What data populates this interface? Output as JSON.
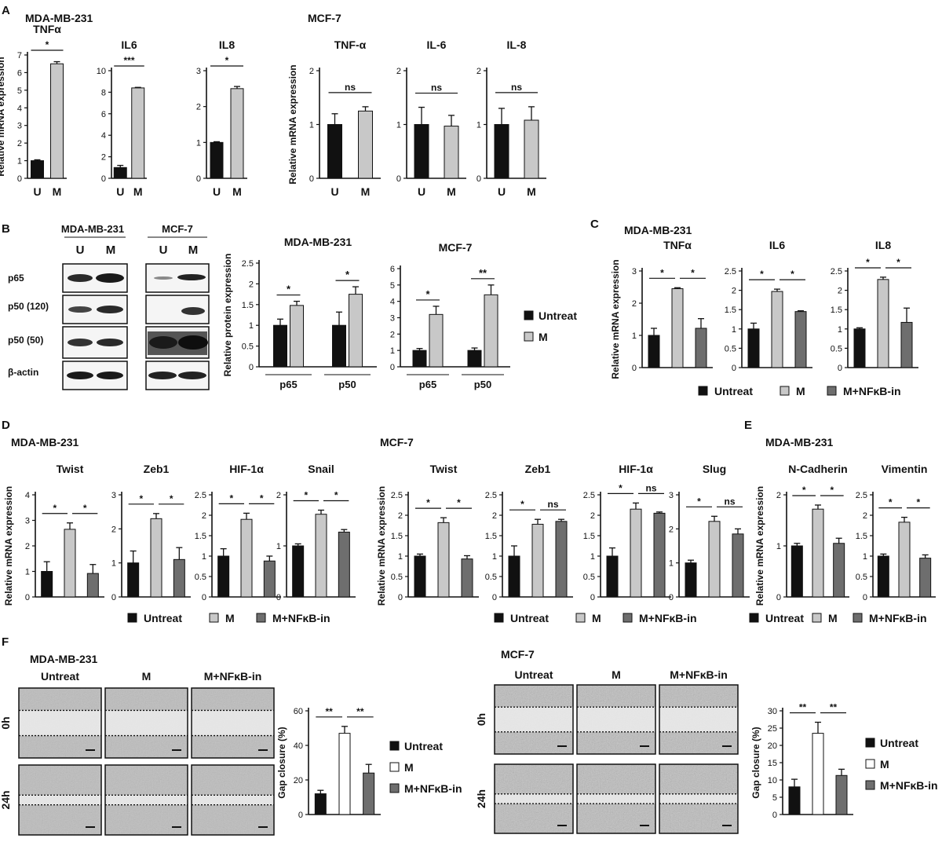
{
  "panels": {
    "A": {
      "letter": "A",
      "groups": [
        {
          "cell": "MDA-MB-231"
        },
        {
          "cell": "MCF-7"
        }
      ]
    },
    "B": {
      "letter": "B"
    },
    "C": {
      "letter": "C",
      "cell": "MDA-MB-231"
    },
    "D": {
      "letter": "D",
      "groups": [
        {
          "cell": "MDA-MB-231"
        },
        {
          "cell": "MCF-7"
        }
      ]
    },
    "E": {
      "letter": "E",
      "cell": "MDA-MB-231"
    },
    "F": {
      "letter": "F",
      "groups": [
        {
          "cell": "MDA-MB-231"
        },
        {
          "cell": "MCF-7"
        }
      ]
    }
  },
  "legends": {
    "two": [
      "Untreat",
      "M"
    ],
    "three": [
      "Untreat",
      "M",
      "M+NFκB-in"
    ]
  },
  "colors": {
    "untreat": "#111111",
    "m": "#c8c8c8",
    "inhibitor": "#6e6e6e",
    "m_open": "#ffffff"
  },
  "western": {
    "groups": [
      {
        "cell": "MDA-MB-231",
        "lanes": [
          "U",
          "M"
        ]
      },
      {
        "cell": "MCF-7",
        "lanes": [
          "U",
          "M"
        ]
      }
    ],
    "rows": [
      "p65",
      "p50 (120)",
      "p50 (50)",
      "β-actin"
    ]
  },
  "scratch": {
    "columns": [
      "Untreat",
      "M",
      "M+NFκB-in"
    ],
    "rows": [
      "0h",
      "24h"
    ]
  },
  "chart_data": [
    {
      "id": "A1",
      "type": "bar",
      "title": "TNFα",
      "ylabel": "Relative mRNA expression",
      "categories": [
        "U",
        "M"
      ],
      "values": [
        1.0,
        6.5
      ],
      "errors": [
        0.05,
        0.12
      ],
      "ylim": [
        0,
        7
      ],
      "yticks": [
        0,
        1,
        2,
        3,
        4,
        5,
        6,
        7
      ],
      "significance": [
        {
          "from": 0,
          "to": 1,
          "label": "*"
        }
      ]
    },
    {
      "id": "A2",
      "type": "bar",
      "title": "IL6",
      "ylabel": "",
      "categories": [
        "U",
        "M"
      ],
      "values": [
        1.0,
        8.4
      ],
      "errors": [
        0.2,
        0.05
      ],
      "ylim": [
        0,
        10
      ],
      "yticks": [
        0,
        2,
        4,
        6,
        8,
        10
      ],
      "significance": [
        {
          "from": 0,
          "to": 1,
          "label": "***"
        }
      ]
    },
    {
      "id": "A3",
      "type": "bar",
      "title": "IL8",
      "ylabel": "",
      "categories": [
        "U",
        "M"
      ],
      "values": [
        1.0,
        2.5
      ],
      "errors": [
        0.02,
        0.06
      ],
      "ylim": [
        0,
        3
      ],
      "yticks": [
        0,
        1,
        2,
        3
      ],
      "significance": [
        {
          "from": 0,
          "to": 1,
          "label": "*"
        }
      ]
    },
    {
      "id": "A4",
      "type": "bar",
      "title": "TNF-α",
      "ylabel": "Relative mRNA expression",
      "categories": [
        "U",
        "M"
      ],
      "values": [
        1.0,
        1.25
      ],
      "errors": [
        0.2,
        0.08
      ],
      "ylim": [
        0,
        2
      ],
      "yticks": [
        0,
        1,
        2
      ],
      "significance": [
        {
          "from": 0,
          "to": 1,
          "label": "ns"
        }
      ]
    },
    {
      "id": "A5",
      "type": "bar",
      "title": "IL-6",
      "ylabel": "",
      "categories": [
        "U",
        "M"
      ],
      "values": [
        1.0,
        0.97
      ],
      "errors": [
        0.32,
        0.2
      ],
      "ylim": [
        0,
        2
      ],
      "yticks": [
        0,
        1,
        2
      ],
      "significance": [
        {
          "from": 0,
          "to": 1,
          "label": "ns"
        }
      ]
    },
    {
      "id": "A6",
      "type": "bar",
      "title": "IL-8",
      "ylabel": "",
      "categories": [
        "U",
        "M"
      ],
      "values": [
        1.0,
        1.08
      ],
      "errors": [
        0.3,
        0.25
      ],
      "ylim": [
        0,
        2
      ],
      "yticks": [
        0,
        1,
        2
      ],
      "significance": [
        {
          "from": 0,
          "to": 1,
          "label": "ns"
        }
      ]
    },
    {
      "id": "B1",
      "type": "bar",
      "title": "MDA-MB-231",
      "ylabel": "Relative protein expression",
      "categories": [
        "p65",
        "p50"
      ],
      "series": [
        {
          "name": "Untreat",
          "values": [
            1.0,
            1.0
          ],
          "errors": [
            0.15,
            0.32
          ]
        },
        {
          "name": "M",
          "values": [
            1.48,
            1.75
          ],
          "errors": [
            0.1,
            0.18
          ]
        }
      ],
      "ylim": [
        0,
        2.5
      ],
      "yticks": [
        0,
        0.5,
        1,
        1.5,
        2,
        2.5
      ],
      "significance": [
        {
          "category": 0,
          "label": "*"
        },
        {
          "category": 1,
          "label": "*"
        }
      ]
    },
    {
      "id": "B2",
      "type": "bar",
      "title": "MCF-7",
      "ylabel": "",
      "categories": [
        "p65",
        "p50"
      ],
      "series": [
        {
          "name": "Untreat",
          "values": [
            1.0,
            1.0
          ],
          "errors": [
            0.12,
            0.15
          ]
        },
        {
          "name": "M",
          "values": [
            3.2,
            4.4
          ],
          "errors": [
            0.5,
            0.6
          ]
        }
      ],
      "ylim": [
        0,
        6
      ],
      "yticks": [
        0,
        1,
        2,
        3,
        4,
        5,
        6
      ],
      "significance": [
        {
          "category": 0,
          "label": "*"
        },
        {
          "category": 1,
          "label": "**"
        }
      ]
    },
    {
      "id": "C1",
      "type": "bar",
      "title": "TNFα",
      "ylabel": "Relative mRNA expression",
      "categories": [
        "Untreat",
        "M",
        "M+NFκB-in"
      ],
      "values": [
        1.0,
        2.45,
        1.22
      ],
      "errors": [
        0.22,
        0.03,
        0.3
      ],
      "ylim": [
        0,
        3
      ],
      "yticks": [
        0,
        1,
        2,
        3
      ],
      "significance": [
        {
          "from": 0,
          "to": 1,
          "label": "*"
        },
        {
          "from": 1,
          "to": 2,
          "label": "*"
        }
      ]
    },
    {
      "id": "C2",
      "type": "bar",
      "title": "IL6",
      "ylabel": "",
      "categories": [
        "Untreat",
        "M",
        "M+NFκB-in"
      ],
      "values": [
        1.0,
        1.97,
        1.45
      ],
      "errors": [
        0.15,
        0.06,
        0.02
      ],
      "ylim": [
        0,
        2.5
      ],
      "yticks": [
        0,
        0.5,
        1,
        1.5,
        2,
        2.5
      ],
      "significance": [
        {
          "from": 0,
          "to": 1,
          "label": "*"
        },
        {
          "from": 1,
          "to": 2,
          "label": "*"
        }
      ]
    },
    {
      "id": "C3",
      "type": "bar",
      "title": "IL8",
      "ylabel": "",
      "categories": [
        "Untreat",
        "M",
        "M+NFκB-in"
      ],
      "values": [
        1.0,
        2.28,
        1.17
      ],
      "errors": [
        0.03,
        0.06,
        0.37
      ],
      "ylim": [
        0,
        2.5
      ],
      "yticks": [
        0,
        0.5,
        1,
        1.5,
        2,
        2.5
      ],
      "significance": [
        {
          "from": 0,
          "to": 1,
          "label": "*"
        },
        {
          "from": 1,
          "to": 2,
          "label": "*"
        }
      ]
    },
    {
      "id": "D1",
      "type": "bar",
      "title": "Twist",
      "ylabel": "Relative mRNA expression",
      "categories": [
        "Untreat",
        "M",
        "M+NFκB-in"
      ],
      "values": [
        1.0,
        2.65,
        0.92
      ],
      "errors": [
        0.38,
        0.25,
        0.35
      ],
      "ylim": [
        0,
        4
      ],
      "yticks": [
        0,
        1,
        2,
        3,
        4
      ],
      "significance": [
        {
          "from": 0,
          "to": 1,
          "label": "*"
        },
        {
          "from": 1,
          "to": 2,
          "label": "*"
        }
      ]
    },
    {
      "id": "D2",
      "type": "bar",
      "title": "Zeb1",
      "ylabel": "",
      "categories": [
        "Untreat",
        "M",
        "M+NFκB-in"
      ],
      "values": [
        1.0,
        2.3,
        1.1
      ],
      "errors": [
        0.35,
        0.15,
        0.35
      ],
      "ylim": [
        0,
        3
      ],
      "yticks": [
        0,
        1,
        2,
        3
      ],
      "significance": [
        {
          "from": 0,
          "to": 1,
          "label": "*"
        },
        {
          "from": 1,
          "to": 2,
          "label": "*"
        }
      ]
    },
    {
      "id": "D3",
      "type": "bar",
      "title": "HIF-1α",
      "ylabel": "",
      "categories": [
        "Untreat",
        "M",
        "M+NFκB-in"
      ],
      "values": [
        1.0,
        1.9,
        0.88
      ],
      "errors": [
        0.18,
        0.15,
        0.12
      ],
      "ylim": [
        0,
        2.5
      ],
      "yticks": [
        0,
        0.5,
        1,
        1.5,
        2,
        2.5
      ],
      "significance": [
        {
          "from": 0,
          "to": 1,
          "label": "*"
        },
        {
          "from": 1,
          "to": 2,
          "label": "*"
        }
      ]
    },
    {
      "id": "D4",
      "type": "bar",
      "title": "Snail",
      "ylabel": "",
      "categories": [
        "Untreat",
        "M",
        "M+NFκB-in"
      ],
      "values": [
        1.0,
        1.62,
        1.27
      ],
      "errors": [
        0.04,
        0.08,
        0.05
      ],
      "ylim": [
        0,
        2
      ],
      "yticks": [
        0,
        1,
        2
      ],
      "significance": [
        {
          "from": 0,
          "to": 1,
          "label": "*"
        },
        {
          "from": 1,
          "to": 2,
          "label": "*"
        }
      ]
    },
    {
      "id": "D5",
      "type": "bar",
      "title": "Twist",
      "ylabel": "Relative mRNA expression",
      "categories": [
        "Untreat",
        "M",
        "M+NFκB-in"
      ],
      "values": [
        1.0,
        1.82,
        0.93
      ],
      "errors": [
        0.05,
        0.12,
        0.08
      ],
      "ylim": [
        0,
        2.5
      ],
      "yticks": [
        0,
        0.5,
        1,
        1.5,
        2,
        2.5
      ],
      "significance": [
        {
          "from": 0,
          "to": 1,
          "label": "*"
        },
        {
          "from": 1,
          "to": 2,
          "label": "*"
        }
      ]
    },
    {
      "id": "D6",
      "type": "bar",
      "title": "Zeb1",
      "ylabel": "",
      "categories": [
        "Untreat",
        "M",
        "M+NFκB-in"
      ],
      "values": [
        1.0,
        1.78,
        1.85
      ],
      "errors": [
        0.25,
        0.12,
        0.05
      ],
      "ylim": [
        0,
        2.5
      ],
      "yticks": [
        0,
        0.5,
        1,
        1.5,
        2,
        2.5
      ],
      "significance": [
        {
          "from": 0,
          "to": 1,
          "label": "*"
        },
        {
          "from": 1,
          "to": 2,
          "label": "ns"
        }
      ]
    },
    {
      "id": "D7",
      "type": "bar",
      "title": "HIF-1α",
      "ylabel": "",
      "categories": [
        "Untreat",
        "M",
        "M+NFκB-in"
      ],
      "values": [
        1.0,
        2.15,
        2.05
      ],
      "errors": [
        0.2,
        0.15,
        0.03
      ],
      "ylim": [
        0,
        2.5
      ],
      "yticks": [
        0,
        0.5,
        1,
        1.5,
        2,
        2.5
      ],
      "significance": [
        {
          "from": 0,
          "to": 1,
          "label": "*"
        },
        {
          "from": 1,
          "to": 2,
          "label": "ns"
        }
      ]
    },
    {
      "id": "D8",
      "type": "bar",
      "title": "Slug",
      "ylabel": "",
      "categories": [
        "Untreat",
        "M",
        "M+NFκB-in"
      ],
      "values": [
        1.0,
        2.22,
        1.85
      ],
      "errors": [
        0.08,
        0.15,
        0.15
      ],
      "ylim": [
        0,
        3
      ],
      "yticks": [
        0,
        1,
        2,
        3
      ],
      "significance": [
        {
          "from": 0,
          "to": 1,
          "label": "*"
        },
        {
          "from": 1,
          "to": 2,
          "label": "ns"
        }
      ]
    },
    {
      "id": "E1",
      "type": "bar",
      "title": "N-Cadherin",
      "ylabel": "Relative mRNA expression",
      "categories": [
        "Untreat",
        "M",
        "M+NFκB-in"
      ],
      "values": [
        1.0,
        1.72,
        1.05
      ],
      "errors": [
        0.05,
        0.08,
        0.1
      ],
      "ylim": [
        0,
        2
      ],
      "yticks": [
        0,
        1,
        2
      ],
      "significance": [
        {
          "from": 0,
          "to": 1,
          "label": "*"
        },
        {
          "from": 1,
          "to": 2,
          "label": "*"
        }
      ]
    },
    {
      "id": "E2",
      "type": "bar",
      "title": "Vimentin",
      "ylabel": "",
      "categories": [
        "Untreat",
        "M",
        "M+NFκB-in"
      ],
      "values": [
        1.0,
        1.83,
        0.95
      ],
      "errors": [
        0.05,
        0.12,
        0.08
      ],
      "ylim": [
        0,
        2.5
      ],
      "yticks": [
        0,
        0.5,
        1,
        1.5,
        2,
        2.5
      ],
      "significance": [
        {
          "from": 0,
          "to": 1,
          "label": "*"
        },
        {
          "from": 1,
          "to": 2,
          "label": "*"
        }
      ]
    },
    {
      "id": "F1",
      "type": "bar",
      "title": "",
      "ylabel": "Gap closure (%)",
      "categories": [
        "Untreat",
        "M",
        "M+NFκB-in"
      ],
      "values": [
        12,
        47,
        24
      ],
      "errors": [
        2,
        4,
        5
      ],
      "ylim": [
        0,
        60
      ],
      "yticks": [
        0,
        20,
        40,
        60
      ],
      "significance": [
        {
          "from": 0,
          "to": 1,
          "label": "**"
        },
        {
          "from": 1,
          "to": 2,
          "label": "**"
        }
      ]
    },
    {
      "id": "F2",
      "type": "bar",
      "title": "",
      "ylabel": "Gap closure (%)",
      "categories": [
        "Untreat",
        "M",
        "M+NFκB-in"
      ],
      "values": [
        8,
        23.5,
        11.3
      ],
      "errors": [
        2.2,
        3.2,
        1.8
      ],
      "ylim": [
        0,
        30
      ],
      "yticks": [
        0,
        5,
        10,
        15,
        20,
        25,
        30
      ],
      "significance": [
        {
          "from": 0,
          "to": 1,
          "label": "**"
        },
        {
          "from": 1,
          "to": 2,
          "label": "**"
        }
      ]
    }
  ]
}
